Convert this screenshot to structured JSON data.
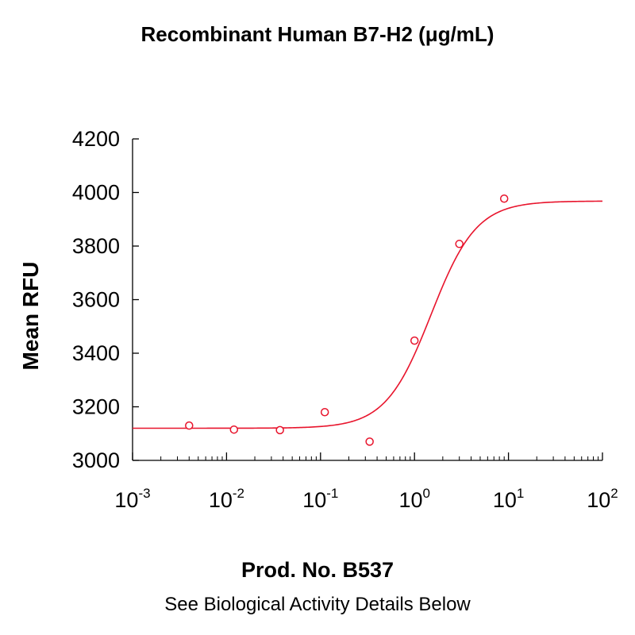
{
  "chart_data": {
    "type": "scatter",
    "title": "Recombinant Human B7-H2 (μg/mL)",
    "xlabel": "",
    "ylabel": "Mean RFU",
    "x_scale": "log",
    "xlim": [
      0.001,
      100
    ],
    "ylim": [
      3000,
      4200
    ],
    "grid": false,
    "x_tick_base": "10",
    "x_ticks": [
      {
        "value": 0.001,
        "exp": "-3"
      },
      {
        "value": 0.01,
        "exp": "-2"
      },
      {
        "value": 0.1,
        "exp": "-1"
      },
      {
        "value": 1,
        "exp": "0"
      },
      {
        "value": 10,
        "exp": "1"
      },
      {
        "value": 100,
        "exp": "2"
      }
    ],
    "y_ticks": [
      3000,
      3200,
      3400,
      3600,
      3800,
      4000,
      4200
    ],
    "series": [
      {
        "marker": "circle-open",
        "color": "#e8142c",
        "points": [
          {
            "x": 0.004,
            "y": 3130
          },
          {
            "x": 0.012,
            "y": 3115
          },
          {
            "x": 0.037,
            "y": 3113
          },
          {
            "x": 0.111,
            "y": 3180
          },
          {
            "x": 0.333,
            "y": 3070
          },
          {
            "x": 1.0,
            "y": 3447
          },
          {
            "x": 3.0,
            "y": 3808
          },
          {
            "x": 9.0,
            "y": 3977
          }
        ],
        "fit": {
          "model": "4PL",
          "bottom": 3120,
          "top": 3968,
          "ec50": 1.5,
          "hill": 1.8
        }
      }
    ]
  },
  "footer": {
    "product": "Prod. No. B537",
    "note": "See Biological Activity Details Below"
  }
}
